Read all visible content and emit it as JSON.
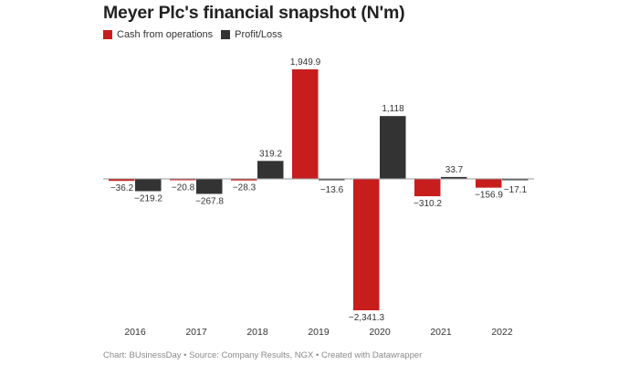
{
  "title": "Meyer Plc's financial snapshot (N'm)",
  "footer": "Chart: BUsinessDay • Source: Company Results, NGX • Created with Datawrapper",
  "chart_data": {
    "type": "bar",
    "title": "Meyer Plc's financial snapshot (N'm)",
    "categories": [
      "2016",
      "2017",
      "2018",
      "2019",
      "2020",
      "2021",
      "2022"
    ],
    "series": [
      {
        "name": "Cash from operations",
        "color": "#c71e1d",
        "values": [
          -36.2,
          -20.8,
          -28.3,
          1949.9,
          -2341.3,
          -310.2,
          -156.9
        ],
        "labels": [
          "−36.2",
          "−20.8",
          "−28.3",
          "1,949.9",
          "−2,341.3",
          "−310.2",
          "−156.9"
        ]
      },
      {
        "name": "Profit/Loss",
        "color": "#333333",
        "values": [
          -219.2,
          -267.8,
          319.2,
          -13.6,
          1118,
          33.7,
          -17.1
        ],
        "labels": [
          "−219.2",
          "−267.8",
          "319.2",
          "−13.6",
          "1,118",
          "33.7",
          "−17.1"
        ]
      }
    ],
    "legend": "top-left",
    "grid": false
  }
}
